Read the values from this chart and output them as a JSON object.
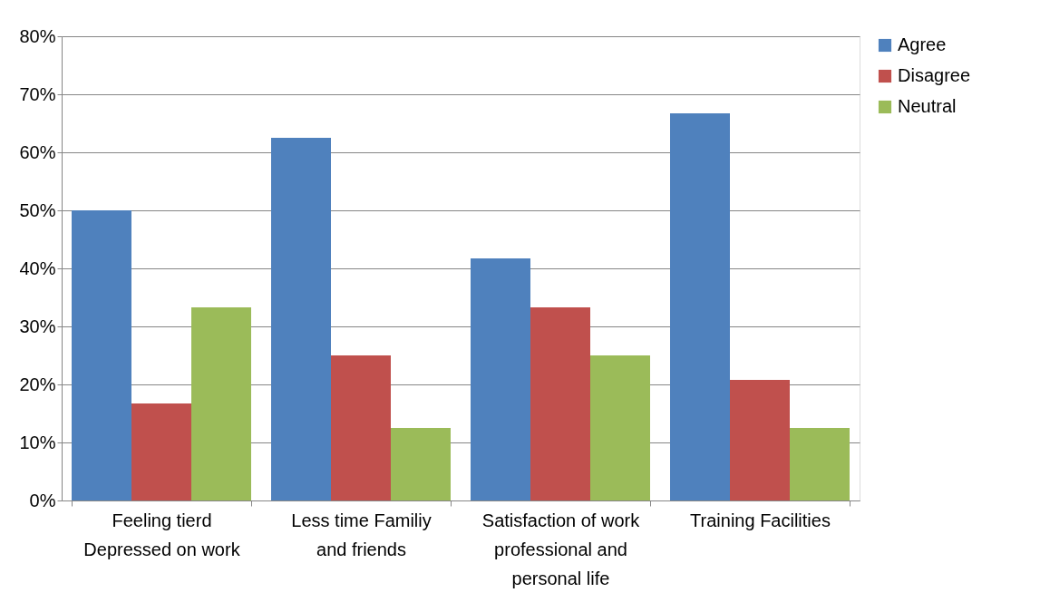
{
  "chart_data": {
    "type": "bar",
    "categories": [
      "Feeling tierd Depressed on work",
      "Less time Familiy and friends",
      "Satisfaction of work professional and personal life",
      "Training Facilities"
    ],
    "series": [
      {
        "name": "Agree",
        "color": "#4f81bd",
        "values": [
          50,
          62.5,
          41.7,
          66.7
        ]
      },
      {
        "name": "Disagree",
        "color": "#c0504d",
        "values": [
          16.7,
          25,
          33.3,
          20.8
        ]
      },
      {
        "name": "Neutral",
        "color": "#9bbb59",
        "values": [
          33.3,
          12.5,
          25,
          12.5
        ]
      }
    ],
    "ylim": [
      0,
      80
    ],
    "yticks": [
      {
        "value": 0,
        "label": "0%"
      },
      {
        "value": 10,
        "label": "10%"
      },
      {
        "value": 20,
        "label": "20%"
      },
      {
        "value": 30,
        "label": "30%"
      },
      {
        "value": 40,
        "label": "40%"
      },
      {
        "value": 50,
        "label": "50%"
      },
      {
        "value": 60,
        "label": "60%"
      },
      {
        "value": 70,
        "label": "70%"
      },
      {
        "value": 80,
        "label": "80%"
      }
    ],
    "grid": "y",
    "legend": "right"
  }
}
